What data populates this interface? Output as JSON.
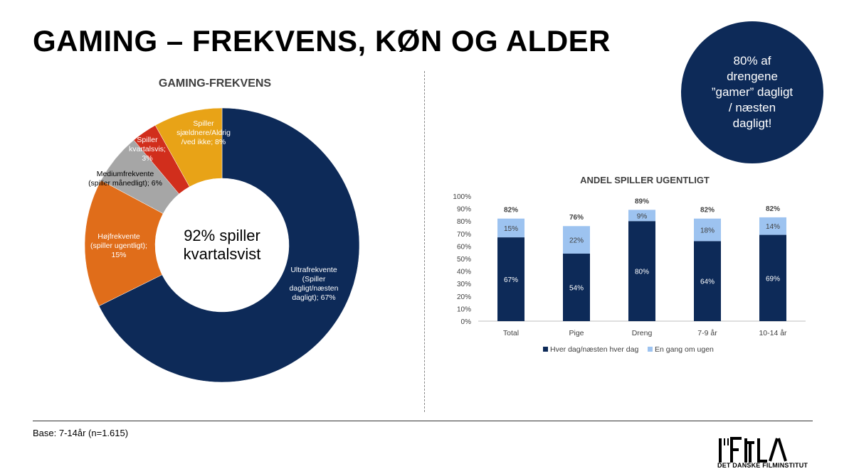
{
  "page": {
    "title": "GAMING – FREKVENS, KØN OG ALDER",
    "callout": "80% af drengene ”gamer” dagligt / næsten dagligt!",
    "footnote": "Base: 7-14år (n=1.615)",
    "logo_text": "DET DANSKE FILMINSTITUT",
    "colors": {
      "navy": "#0d2a58",
      "light_blue": "#9dc3f0",
      "orange": "#e06d1a",
      "gray": "#a6a6a6",
      "red": "#d12e1c",
      "gold": "#e8a317"
    }
  },
  "chart_data": [
    {
      "type": "pie",
      "title": "GAMING-FREKVENS",
      "center_label": [
        "92% spiller",
        "kvartalsvist"
      ],
      "slices": [
        {
          "label": [
            "Ultrafrekvente",
            "(Spiller",
            "dagligt/næsten",
            "dagligt); 67%"
          ],
          "value": 67,
          "color": "#0d2a58"
        },
        {
          "label": [
            "Højfrekvente",
            "(spiller ugentligt);",
            "15%"
          ],
          "value": 15,
          "color": "#e06d1a"
        },
        {
          "label": [
            "Mediumfrekvente",
            "(spiller månedligt); 6%"
          ],
          "value": 6,
          "color": "#a6a6a6"
        },
        {
          "label": [
            "Spiller",
            "kvartalsvis;",
            "3%"
          ],
          "value": 3,
          "color": "#d12e1c"
        },
        {
          "label": [
            "Spiller",
            "sjældnere/Aldrig",
            "/ved ikke; 8%"
          ],
          "value": 8,
          "color": "#e8a317"
        }
      ]
    },
    {
      "type": "bar",
      "stacked": true,
      "title": "ANDEL SPILLER UGENTLIGT",
      "categories": [
        "Total",
        "Pige",
        "Dreng",
        "7-9 år",
        "10-14 år"
      ],
      "series": [
        {
          "name": "Hver dag/næsten hver dag",
          "values": [
            67,
            54,
            80,
            64,
            69
          ],
          "color": "#0d2a58"
        },
        {
          "name": "En gang om ugen",
          "values": [
            15,
            22,
            9,
            18,
            14
          ],
          "color": "#9dc3f0"
        }
      ],
      "totals": [
        82,
        76,
        89,
        82,
        82
      ],
      "ylim": [
        0,
        100
      ],
      "yticks": [
        "0%",
        "10%",
        "20%",
        "30%",
        "40%",
        "50%",
        "60%",
        "70%",
        "80%",
        "90%",
        "100%"
      ],
      "legend": "bottom",
      "grid": false
    }
  ]
}
